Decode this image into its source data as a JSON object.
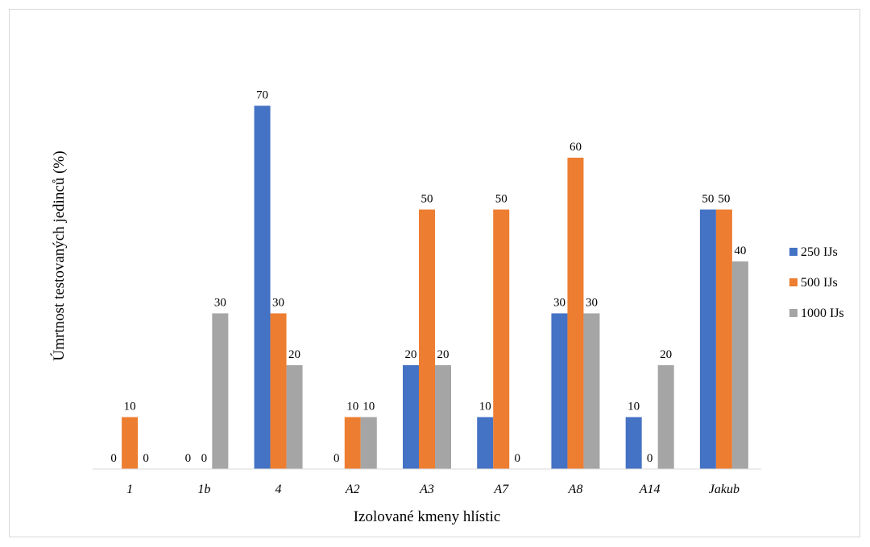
{
  "chart_data": {
    "type": "bar",
    "title": "",
    "xlabel": "Izolované kmeny hlístic",
    "ylabel": "Úmrtnost testovaných jedinců (%)",
    "ylim": [
      0,
      80
    ],
    "grid": false,
    "legend_position": "right",
    "categories": [
      "1",
      "1b",
      "4",
      "A2",
      "A3",
      "A7",
      "A8",
      "A14",
      "Jakub"
    ],
    "series": [
      {
        "name": "250 IJs",
        "color": "#4472c4",
        "values": [
          0,
          0,
          70,
          0,
          20,
          10,
          30,
          10,
          50
        ]
      },
      {
        "name": "500 IJs",
        "color": "#ed7d31",
        "values": [
          10,
          0,
          30,
          10,
          50,
          50,
          60,
          0,
          50
        ]
      },
      {
        "name": "1000 IJs",
        "color": "#a5a5a5",
        "values": [
          0,
          30,
          20,
          10,
          20,
          0,
          30,
          20,
          40
        ]
      }
    ]
  }
}
